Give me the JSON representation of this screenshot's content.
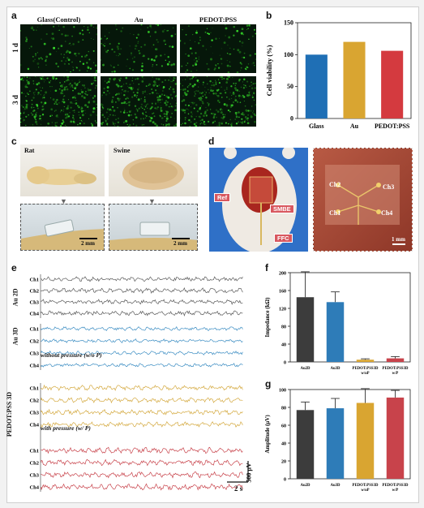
{
  "panels": {
    "a": "a",
    "b": "b",
    "c": "c",
    "d": "d",
    "e": "e",
    "f": "f",
    "g": "g"
  },
  "panel_a": {
    "columns": [
      "Glass(Control)",
      "Au",
      "PEDOT:PSS"
    ],
    "rows": [
      "1 d",
      "3 d"
    ]
  },
  "panel_c": {
    "labels": [
      "Rat",
      "Swine"
    ],
    "scalebars": [
      "2 mm",
      "2 mm"
    ]
  },
  "panel_d": {
    "labels": [
      "Ref",
      "SMBE",
      "FFC"
    ],
    "channels": [
      "Ch2",
      "Ch3",
      "Ch1",
      "Ch4"
    ],
    "scalebar": "1 mm"
  },
  "panel_e": {
    "groups": [
      "Au 2D",
      "Au 3D",
      "PEDOT:PSS 3D"
    ],
    "subheads": [
      "without pressure (w/o P)",
      "with pressure (w/ P)"
    ],
    "channels": [
      "Ch1",
      "Ch2",
      "Ch3",
      "Ch4"
    ],
    "time_scale": "2 s",
    "amp_scale": "500 μV",
    "colors": [
      "#5a5a5a",
      "#3a8cc2",
      "#d4a93f",
      "#c8434b"
    ]
  },
  "chart_data": [
    {
      "type": "bar",
      "panel": "b",
      "categories": [
        "Glass",
        "Au",
        "PEDOT:PSS"
      ],
      "values": [
        100,
        120,
        106
      ],
      "colors": [
        "#1f6fb5",
        "#d9a531",
        "#d43a3f"
      ],
      "ylabel": "Cell viability (%)",
      "ylim": [
        0,
        150
      ],
      "yticks": [
        0,
        50,
        100,
        150
      ]
    },
    {
      "type": "bar",
      "panel": "f",
      "categories": [
        "Au2D",
        "Au3D",
        "PEDOT:PSS3D w/oP",
        "PEDOT:PSS3D w/P"
      ],
      "values": [
        145,
        134,
        5,
        8
      ],
      "errors": [
        57,
        23,
        2,
        4
      ],
      "colors": [
        "#3c3c3c",
        "#2e7cb8",
        "#d9a531",
        "#c8434b"
      ],
      "ylabel": "Impedance (kΩ)",
      "ylim": [
        0,
        200
      ],
      "yticks": [
        0,
        40,
        80,
        120,
        160,
        200
      ]
    },
    {
      "type": "bar",
      "panel": "g",
      "categories": [
        "Au2D",
        "Au3D",
        "PEDOT:PSS3D w/oP",
        "PEDOT:PSS3D w/P"
      ],
      "values": [
        77,
        79,
        85,
        91
      ],
      "errors": [
        9,
        11,
        16,
        8
      ],
      "colors": [
        "#3c3c3c",
        "#2e7cb8",
        "#d9a531",
        "#c8434b"
      ],
      "ylabel": "Amplitude (μV)",
      "ylim": [
        0,
        100
      ],
      "yticks": [
        0,
        20,
        40,
        60,
        80,
        100
      ]
    }
  ]
}
